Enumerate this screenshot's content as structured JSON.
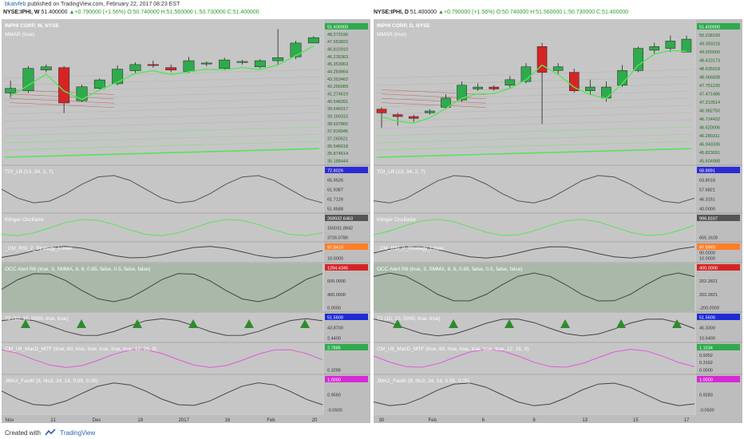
{
  "header": {
    "author": "bkatvfeb",
    "published_text": "published on TradingView.com, February 22, 2017 08:23 EST"
  },
  "footer": {
    "created_with": "Created with",
    "brand": "TradingView"
  },
  "colors": {
    "up": "#2eab4c",
    "down": "#d62424",
    "bg": "#c9c9c9",
    "green_line": "#56e45a"
  },
  "chart_data": [
    {
      "type": "candlestick",
      "symbol_bar": {
        "symbol": "NYSE:IPHI, W",
        "last": "51.400000",
        "change": "+0.790000 (+1.56%)",
        "open": "O:50.740000",
        "high": "H:51.560000",
        "low": "L:50.730000",
        "close": "C:51.400000"
      },
      "title": "INPHI CORP, W, NYSE",
      "overlay": "MMAR (true)",
      "ylim": [
        34.9,
        53.6
      ],
      "price_ticks": [
        "51.400000",
        "48.273196",
        "47.653822",
        "46.815910",
        "46.235363",
        "45.353963",
        "44.283664",
        "43.353462",
        "42.266089",
        "41.274619",
        "40.548391",
        "39.646017",
        "39.160315",
        "38.607865",
        "37.818946",
        "37.260521",
        "36.546618",
        "35.874614",
        "35.188444"
      ],
      "candles": [
        {
          "o": 44.2,
          "h": 45.8,
          "l": 43.6,
          "c": 44.8
        },
        {
          "o": 44.5,
          "h": 47.7,
          "l": 44.2,
          "c": 47.4
        },
        {
          "o": 47.2,
          "h": 47.9,
          "l": 46.9,
          "c": 47.6
        },
        {
          "o": 47.5,
          "h": 47.7,
          "l": 41.6,
          "c": 42.9
        },
        {
          "o": 43.2,
          "h": 45.3,
          "l": 43.0,
          "c": 45.0
        },
        {
          "o": 44.8,
          "h": 46.1,
          "l": 44.5,
          "c": 45.9
        },
        {
          "o": 45.4,
          "h": 47.8,
          "l": 45.2,
          "c": 47.3
        },
        {
          "o": 47.1,
          "h": 48.2,
          "l": 46.8,
          "c": 47.9
        },
        {
          "o": 47.9,
          "h": 48.4,
          "l": 47.5,
          "c": 47.8
        },
        {
          "o": 47.5,
          "h": 47.9,
          "l": 46.9,
          "c": 47.2
        },
        {
          "o": 47.0,
          "h": 48.9,
          "l": 46.8,
          "c": 48.4
        },
        {
          "o": 48.0,
          "h": 48.3,
          "l": 47.7,
          "c": 48.1
        },
        {
          "o": 47.4,
          "h": 48.8,
          "l": 47.2,
          "c": 48.5
        },
        {
          "o": 48.2,
          "h": 48.5,
          "l": 47.9,
          "c": 48.3
        },
        {
          "o": 47.6,
          "h": 48.6,
          "l": 47.4,
          "c": 48.4
        },
        {
          "o": 48.4,
          "h": 52.5,
          "l": 47.9,
          "c": 48.8
        },
        {
          "o": 48.9,
          "h": 51.0,
          "l": 48.6,
          "c": 50.7
        },
        {
          "o": 50.7,
          "h": 51.6,
          "l": 50.7,
          "c": 51.4
        }
      ],
      "x_ticks": [
        "Nov",
        "21",
        "Dec",
        "19",
        "2017",
        "16",
        "Feb",
        "20"
      ],
      "indicators": [
        {
          "name": "TDI_LB (13, 34, 2, 7)",
          "values": [
            "72.8026",
            "65.9526",
            "61.9387",
            "61.7126",
            "51.8588"
          ]
        },
        {
          "name": "Klinger Oscillator",
          "values": [
            "268932.6463",
            "165031.8842",
            "3726.0786"
          ]
        },
        {
          "name": "_CM_RSI_2_Strategy_Lower",
          "values": [
            "97.8419",
            "10.0000"
          ]
        },
        {
          "name": "OCC Alert R6 (true, 3, SMMA, 8, 6, 0.85, false, 0.5, false, false)",
          "values": [
            "1284.4345",
            "600.0000",
            "400.0000",
            "0.0000"
          ]
        },
        {
          "name": "T2 (10, 10, 5000, true, true)",
          "values": [
            "51.5600",
            "43.8700",
            "2.4400"
          ]
        },
        {
          "name": "CM_Ult_MacD_MTF (true, 60, true, true, true, true, true, 12, 26, 9)",
          "values": [
            "2.7885",
            "0.3288"
          ]
        },
        {
          "name": "JMA2_FastK (8, hlc3, 24, 16, 0.95, 0.05)",
          "values": [
            "1.0000",
            "0.9560",
            "-0.0500"
          ]
        }
      ]
    },
    {
      "type": "candlestick",
      "symbol_bar": {
        "symbol": "NYSE:IPHI, D",
        "last": "51.400000",
        "change": "+0.790000 (+1.56%)",
        "open": "O:50.740000",
        "high": "H:51.560000",
        "low": "L:50.730000",
        "close": "C:51.400000"
      },
      "title": "INPHI CORP, D, NYSE",
      "overlay": "MMAR (true)",
      "ylim": [
        44.6,
        52.4
      ],
      "price_ticks": [
        "51.400000",
        "50.238199",
        "49.393218",
        "49.000000",
        "48.410173",
        "48.635018",
        "48.066838",
        "47.751230",
        "47.471486",
        "47.210514",
        "46.982750",
        "46.724432",
        "46.520006",
        "46.280311",
        "46.043336",
        "45.823091",
        "45.604988"
      ],
      "candles": [
        {
          "o": 47.6,
          "h": 47.7,
          "l": 46.6,
          "c": 47.4
        },
        {
          "o": 47.3,
          "h": 47.4,
          "l": 46.7,
          "c": 47.2
        },
        {
          "o": 47.2,
          "h": 47.3,
          "l": 46.9,
          "c": 47.1
        },
        {
          "o": 47.4,
          "h": 47.6,
          "l": 47.3,
          "c": 47.5
        },
        {
          "o": 47.7,
          "h": 48.4,
          "l": 47.6,
          "c": 48.2
        },
        {
          "o": 48.1,
          "h": 49.1,
          "l": 48.0,
          "c": 48.9
        },
        {
          "o": 48.7,
          "h": 49.0,
          "l": 48.6,
          "c": 48.8
        },
        {
          "o": 48.8,
          "h": 48.9,
          "l": 48.6,
          "c": 48.7
        },
        {
          "o": 48.9,
          "h": 49.4,
          "l": 48.7,
          "c": 49.2
        },
        {
          "o": 49.1,
          "h": 50.1,
          "l": 49.0,
          "c": 49.9
        },
        {
          "o": 51.0,
          "h": 51.2,
          "l": 46.8,
          "c": 49.6
        },
        {
          "o": 49.7,
          "h": 50.1,
          "l": 49.5,
          "c": 49.9
        },
        {
          "o": 49.6,
          "h": 49.8,
          "l": 48.5,
          "c": 48.6
        },
        {
          "o": 48.6,
          "h": 49.2,
          "l": 48.4,
          "c": 48.8
        },
        {
          "o": 48.2,
          "h": 49.1,
          "l": 48.0,
          "c": 48.8
        },
        {
          "o": 48.9,
          "h": 50.0,
          "l": 48.8,
          "c": 49.7
        },
        {
          "o": 49.7,
          "h": 51.0,
          "l": 49.6,
          "c": 50.9
        },
        {
          "o": 50.8,
          "h": 51.2,
          "l": 50.6,
          "c": 51.0
        },
        {
          "o": 50.9,
          "h": 51.6,
          "l": 50.7,
          "c": 51.3
        },
        {
          "o": 50.7,
          "h": 51.6,
          "l": 50.7,
          "c": 51.4
        }
      ],
      "x_ticks": [
        "30",
        "Feb",
        "6",
        "8",
        "13",
        "15",
        "17"
      ],
      "indicators": [
        {
          "name": "TDI_LB (13, 34, 2, 7)",
          "values": [
            "68.8891",
            "63.8018",
            "57.6821",
            "46.3151",
            "40.0000"
          ]
        },
        {
          "name": "Klinger Oscillator",
          "values": [
            "996.8167",
            "655.1628"
          ]
        },
        {
          "name": "_CM_RSI_2_Strategy_Lower",
          "values": [
            "97.8949",
            "90.0000",
            "10.0000"
          ]
        },
        {
          "name": "OCC Alert R6 (true, 3, SMMA, 8, 6, 0.85, false, 0.5, false, false)",
          "values": [
            "400.0000",
            "202.2821",
            "202.2821",
            "-200.0000"
          ]
        },
        {
          "name": "T2 (10, 10, 5000, true, true)",
          "values": [
            "51.5600",
            "45.3300",
            "10.6400"
          ]
        },
        {
          "name": "CM_Ult_MacD_MTF (true, 60, true, true, true, true, true, 12, 26, 9)",
          "values": [
            "1.1534",
            "0.9352",
            "0.3162",
            "0.0000"
          ]
        },
        {
          "name": "JMA2_FastK (8, hlc3, 24, 16, 0.95, 0.05)",
          "values": [
            "1.0000",
            "0.9283",
            "-0.0500"
          ]
        }
      ]
    }
  ]
}
